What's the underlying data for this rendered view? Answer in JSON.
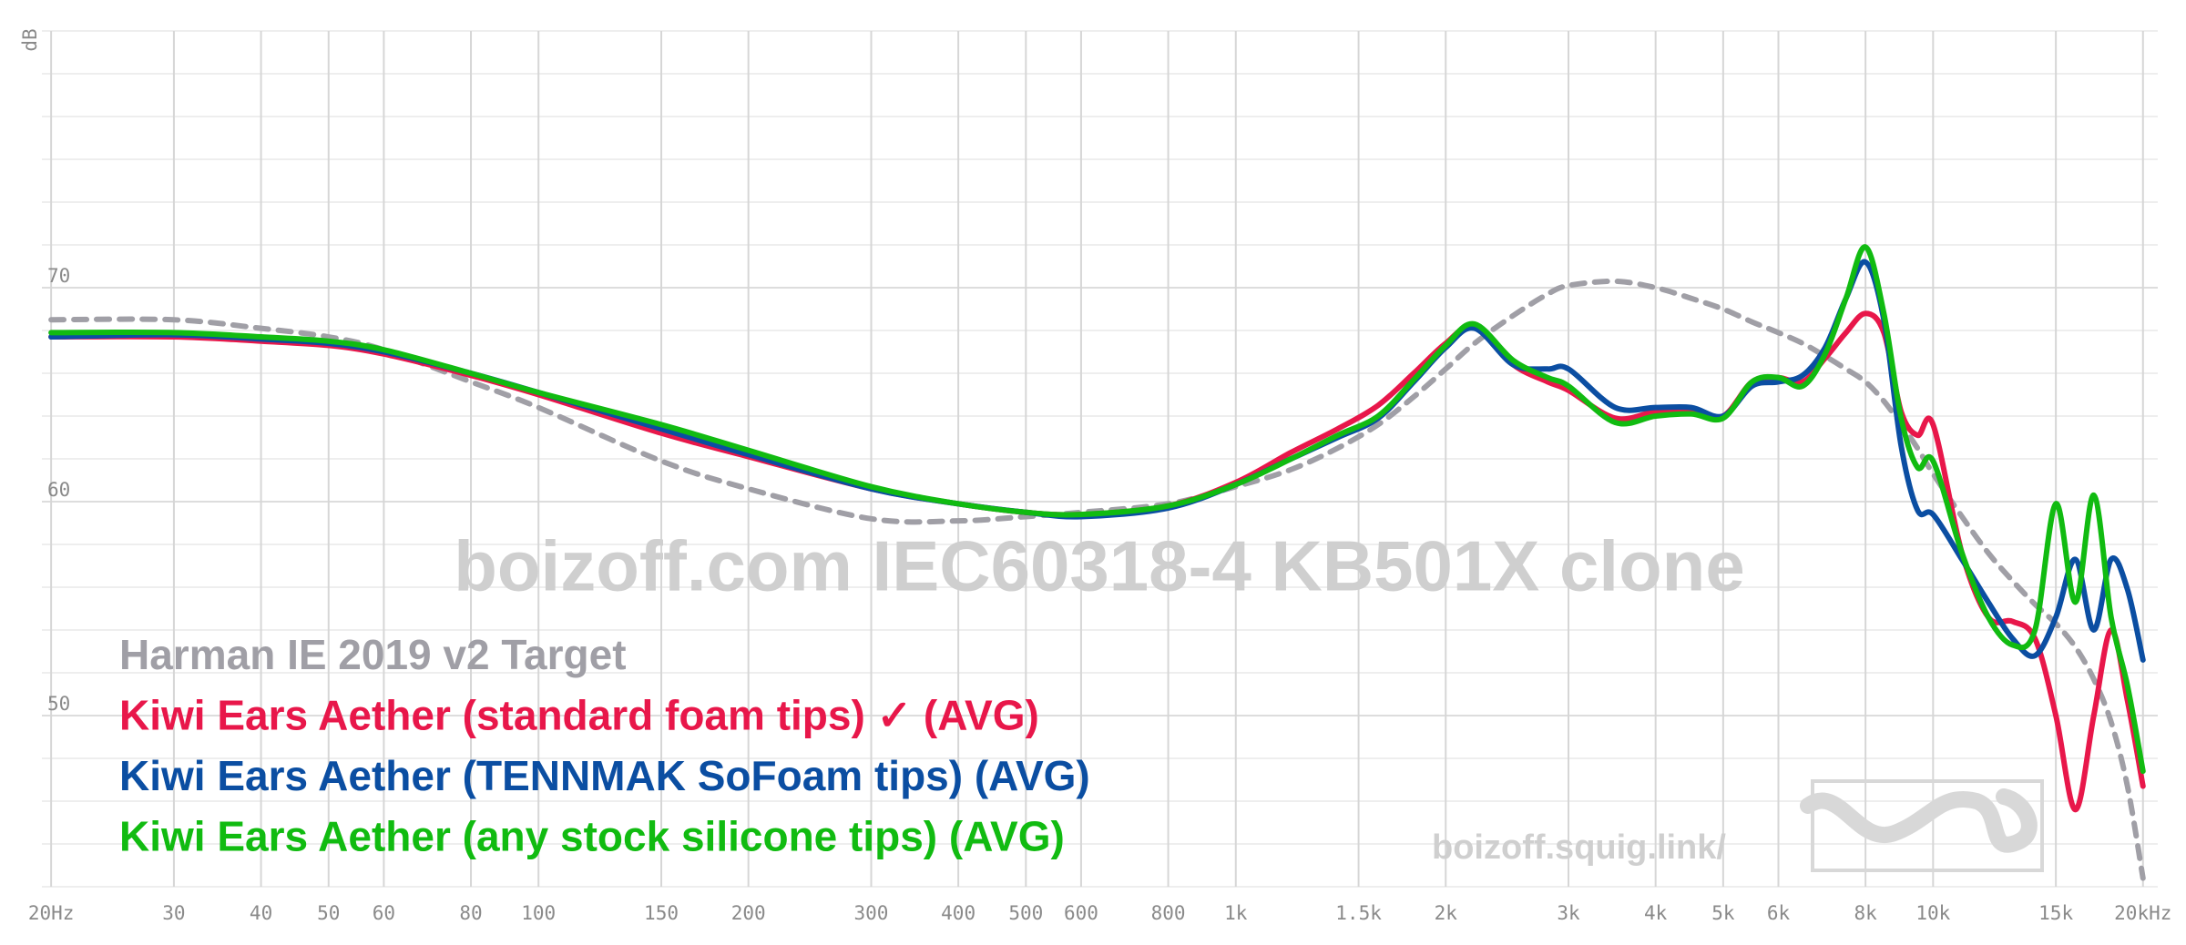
{
  "chart_data": {
    "type": "line",
    "y_label": "dB",
    "watermark": "boizoff.com IEC60318-4 KB501X clone",
    "site": "boizoff.squig.link/",
    "log_x": true,
    "grid": true,
    "xlim": [
      19.4,
      21000
    ],
    "ylim": [
      42,
      82
    ],
    "yticks": [
      50,
      60,
      70
    ],
    "minor_yticks": [
      42,
      44,
      46,
      48,
      52,
      54,
      56,
      58,
      62,
      64,
      66,
      68,
      72,
      74,
      76,
      78,
      80,
      82
    ],
    "xticks": [
      {
        "value": 20,
        "label": "20Hz"
      },
      30,
      40,
      50,
      60,
      80,
      100,
      150,
      200,
      300,
      400,
      500,
      600,
      800,
      {
        "value": 1000,
        "label": "1k"
      },
      {
        "value": 1500,
        "label": "1.5k"
      },
      {
        "value": 2000,
        "label": "2k"
      },
      {
        "value": 3000,
        "label": "3k"
      },
      {
        "value": 4000,
        "label": "4k"
      },
      {
        "value": 5000,
        "label": "5k"
      },
      {
        "value": 6000,
        "label": "6k"
      },
      {
        "value": 8000,
        "label": "8k"
      },
      {
        "value": 10000,
        "label": "10k"
      },
      {
        "value": 15000,
        "label": "15k"
      },
      {
        "value": 20000,
        "label": "20kHz"
      }
    ],
    "x": [
      20,
      30,
      40,
      50,
      60,
      80,
      100,
      150,
      200,
      300,
      400,
      500,
      600,
      800,
      1000,
      1200,
      1400,
      1600,
      1800,
      2000,
      2200,
      2500,
      2800,
      3000,
      3500,
      4000,
      4500,
      5000,
      5500,
      6000,
      6500,
      7000,
      7500,
      8000,
      8500,
      9000,
      9500,
      10000,
      11000,
      12000,
      13000,
      14000,
      15000,
      16000,
      17000,
      18000,
      19000,
      20000
    ],
    "series": [
      {
        "name": "Harman IE 2019 v2 Target",
        "color": "#a09fa6",
        "dashed": true,
        "values": [
          68.5,
          68.5,
          68.1,
          67.7,
          67.1,
          65.6,
          64.4,
          61.9,
          60.6,
          59.2,
          59.1,
          59.3,
          59.5,
          59.9,
          60.7,
          61.5,
          62.5,
          63.6,
          64.9,
          66.2,
          67.4,
          68.7,
          69.7,
          70.1,
          70.3,
          70.0,
          69.5,
          69.0,
          68.4,
          67.9,
          67.4,
          66.8,
          66.2,
          65.6,
          64.7,
          63.6,
          62.5,
          61.3,
          59.3,
          57.6,
          56.3,
          55.2,
          54.3,
          53.2,
          51.7,
          49.7,
          46.7,
          42.4
        ]
      },
      {
        "name": "Kiwi Ears Aether (standard foam tips) ✓ (AVG)",
        "color": "#e8174a",
        "dashed": false,
        "values": [
          67.7,
          67.7,
          67.5,
          67.3,
          66.9,
          65.9,
          65.0,
          63.2,
          62.1,
          60.6,
          59.9,
          59.5,
          59.4,
          59.8,
          60.9,
          62.3,
          63.4,
          64.5,
          66.0,
          67.4,
          68.2,
          66.4,
          65.6,
          65.2,
          63.9,
          64.2,
          64.2,
          64.0,
          65.6,
          65.8,
          65.6,
          66.7,
          67.9,
          68.8,
          67.9,
          64.2,
          63.1,
          63.6,
          57.6,
          54.6,
          54.4,
          53.6,
          50.0,
          45.6,
          50.0,
          54.0,
          50.7,
          46.7
        ]
      },
      {
        "name": "Kiwi Ears Aether (TENNMAK SoFoam tips) (AVG)",
        "color": "#0b4ea2",
        "dashed": false,
        "values": [
          67.7,
          67.8,
          67.6,
          67.4,
          67.0,
          66.0,
          65.1,
          63.4,
          62.2,
          60.6,
          59.9,
          59.5,
          59.3,
          59.7,
          60.8,
          62.0,
          63.0,
          63.9,
          65.6,
          67.2,
          68.1,
          66.4,
          66.2,
          66.2,
          64.4,
          64.4,
          64.4,
          64.0,
          65.4,
          65.6,
          65.9,
          67.2,
          69.5,
          71.2,
          68.5,
          62.6,
          59.6,
          59.4,
          57.3,
          55.3,
          53.6,
          52.8,
          54.6,
          57.3,
          54.0,
          57.3,
          55.9,
          52.6
        ]
      },
      {
        "name": "Kiwi Ears Aether (any stock silicone tips) (AVG)",
        "color": "#11bb11",
        "dashed": false,
        "values": [
          67.9,
          67.9,
          67.7,
          67.5,
          67.1,
          66.0,
          65.1,
          63.6,
          62.4,
          60.7,
          59.9,
          59.5,
          59.4,
          59.8,
          60.8,
          62.0,
          63.1,
          64.0,
          65.7,
          67.3,
          68.3,
          66.6,
          65.8,
          65.4,
          63.7,
          64.0,
          64.1,
          63.9,
          65.6,
          65.8,
          65.4,
          66.9,
          69.5,
          71.9,
          68.8,
          63.9,
          61.6,
          61.9,
          57.6,
          54.6,
          53.3,
          54.0,
          59.9,
          55.3,
          60.3,
          54.6,
          51.4,
          47.4
        ]
      }
    ]
  }
}
